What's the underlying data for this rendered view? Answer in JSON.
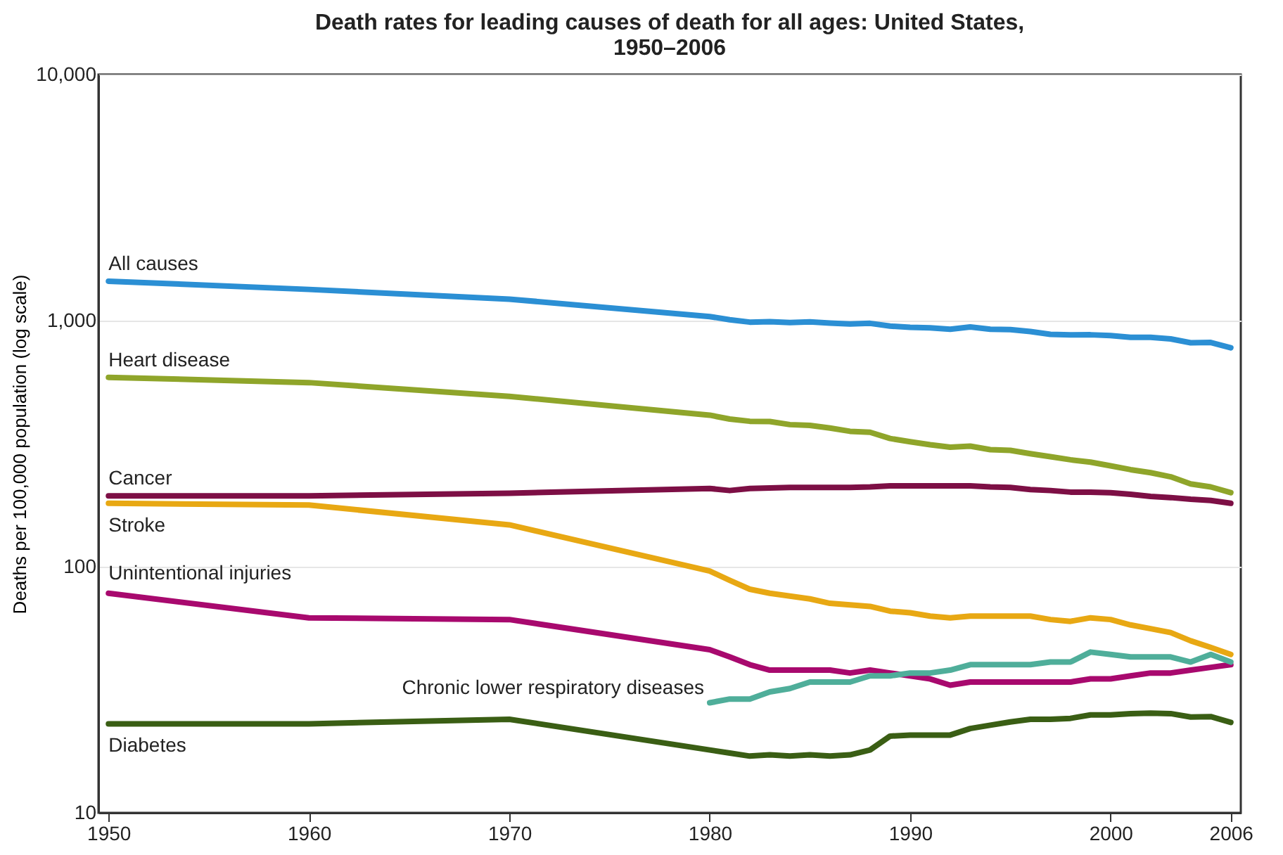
{
  "chart_data": {
    "type": "line",
    "title": "Death rates for leading causes of death for all ages: United States, 1950–2006",
    "ylabel": "Deaths per 100,000 population (log scale)",
    "x": [
      1950,
      1960,
      1970,
      1980,
      1981,
      1982,
      1983,
      1984,
      1985,
      1986,
      1987,
      1988,
      1989,
      1990,
      1991,
      1992,
      1993,
      1994,
      1995,
      1996,
      1997,
      1998,
      1999,
      2000,
      2001,
      2002,
      2003,
      2004,
      2005,
      2006
    ],
    "series": [
      {
        "name": "All causes",
        "color": "#2b8fd4",
        "values": [
          1446,
          1339,
          1223,
          1039,
          1008,
          986,
          990,
          982,
          988,
          978,
          970,
          975,
          950,
          939,
          935,
          922,
          942,
          923,
          919,
          903,
          880,
          875,
          876,
          869,
          855,
          855,
          843,
          813,
          815,
          776
        ]
      },
      {
        "name": "Heart disease",
        "color": "#8fa52a",
        "values": [
          588,
          560,
          492,
          413,
          398,
          390,
          389,
          378,
          375,
          366,
          355,
          352,
          332,
          322,
          313,
          306,
          309,
          299,
          297,
          288,
          280,
          272,
          266,
          257,
          248,
          241,
          232,
          217,
          211,
          200
        ]
      },
      {
        "name": "Cancer",
        "color": "#7d0f45",
        "values": [
          194,
          194,
          199,
          208,
          204,
          208,
          209,
          210,
          210,
          210,
          210,
          211,
          213,
          213,
          213,
          213,
          213,
          211,
          210,
          206,
          204,
          201,
          201,
          200,
          197,
          193,
          191,
          188,
          186,
          181
        ]
      },
      {
        "name": "Stroke",
        "color": "#e8a813",
        "values": [
          181,
          178,
          148,
          96,
          88,
          81,
          78,
          76,
          74,
          71,
          70,
          69,
          66,
          65,
          63,
          62,
          63,
          63,
          63,
          63,
          61,
          60,
          62,
          61,
          58,
          56,
          54,
          50,
          47,
          44
        ]
      },
      {
        "name": "Unintentional injuries",
        "color": "#a8096e",
        "values": [
          78,
          62,
          61,
          46,
          43,
          40,
          38,
          38,
          38,
          38,
          37,
          38,
          37,
          36,
          35,
          33,
          34,
          34,
          34,
          34,
          34,
          34,
          35,
          35,
          36,
          37,
          37,
          38,
          39,
          40
        ]
      },
      {
        "name": "Chronic lower respiratory diseases",
        "color": "#4fae9a",
        "x": [
          1980,
          1981,
          1982,
          1983,
          1984,
          1985,
          1986,
          1987,
          1988,
          1989,
          1990,
          1991,
          1992,
          1993,
          1994,
          1995,
          1996,
          1997,
          1998,
          1999,
          2000,
          2001,
          2002,
          2003,
          2004,
          2005,
          2006
        ],
        "values": [
          28,
          29,
          29,
          31,
          32,
          34,
          34,
          34,
          36,
          36,
          37,
          37,
          38,
          40,
          40,
          40,
          40,
          41,
          41,
          45,
          44,
          43,
          43,
          43,
          41,
          44,
          41
        ]
      },
      {
        "name": "Diabetes",
        "color": "#3a5e14",
        "values": [
          23,
          23,
          24,
          18,
          17.5,
          17,
          17.2,
          17,
          17.2,
          17,
          17.2,
          18,
          20.5,
          20.7,
          20.7,
          20.7,
          22,
          22.7,
          23.4,
          24,
          24,
          24.2,
          25,
          25,
          25.3,
          25.4,
          25.3,
          24.5,
          24.6,
          23.3
        ]
      }
    ],
    "log": "y",
    "ylim": [
      10,
      10000
    ],
    "yticks": [
      10,
      100,
      {
        "value": 1000,
        "label": "1,000"
      },
      {
        "value": 10000,
        "label": "10,000"
      }
    ],
    "xlim": [
      1949.5,
      2006.5
    ],
    "xticks": [
      1950,
      1960,
      1970,
      1980,
      1990,
      2000,
      2006
    ],
    "grid": "y",
    "legend": false,
    "line_style": "solid",
    "marker": "none"
  }
}
